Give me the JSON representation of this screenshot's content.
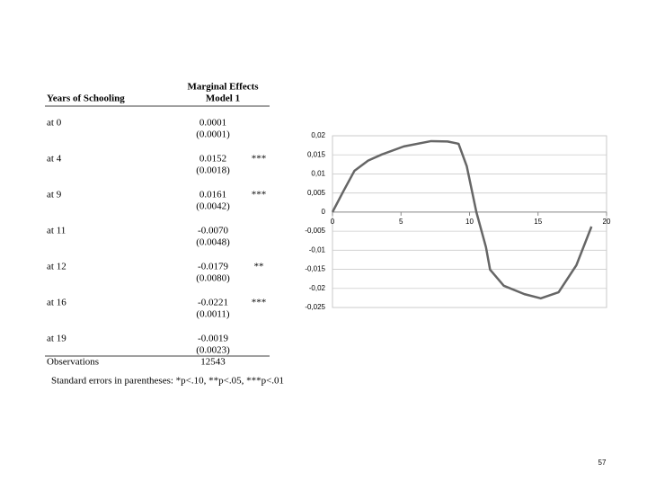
{
  "header": {
    "col1": "Years of Schooling",
    "col2_line1": "Marginal Effects",
    "col2_line2": "Model 1"
  },
  "table": {
    "rows": [
      {
        "label": "at 0",
        "coef": "0.0001",
        "se": "(0.0001)"
      },
      {
        "label": "at 4",
        "coef": "0.0152",
        "se": "(0.0018)",
        "stars": "***"
      },
      {
        "label": "at 9",
        "coef": "0.0161",
        "se": "(0.0042)",
        "stars": "***"
      },
      {
        "label": "at 11",
        "coef": "-0.0070",
        "se": "(0.0048)"
      },
      {
        "label": "at 12",
        "coef": "-0.0179",
        "se": "(0.0080)",
        "stars": "**"
      },
      {
        "label": "at 16",
        "coef": "-0.0221",
        "se": "(0.0011)",
        "stars": "***"
      },
      {
        "label": "at 19",
        "coef": "-0.0019",
        "se": "(0.0023)"
      }
    ],
    "observations": {
      "label": "Observations",
      "value": "12543"
    }
  },
  "footnote": "Standard errors in parentheses: *p<.10, **p<.05, ***p<.01",
  "page_number": "57",
  "chart_data": {
    "type": "line",
    "x": [
      0,
      0.8,
      1.6,
      2.6,
      3.6,
      5.2,
      7.2,
      8.4,
      9.2,
      9.8,
      10.5,
      11.2,
      11.5,
      12.5,
      14,
      15.2,
      16.5,
      17.8,
      18.9
    ],
    "series": [
      {
        "color": "#666666",
        "values": [
          0,
          0.0055,
          0.0108,
          0.0135,
          0.0151,
          0.0172,
          0.0186,
          0.0185,
          0.0179,
          0.012,
          0,
          -0.0092,
          -0.0151,
          -0.0193,
          -0.0215,
          -0.0226,
          -0.021,
          -0.0139,
          -0.0038
        ]
      }
    ],
    "xlim": [
      0,
      20
    ],
    "xticks": [
      0,
      5,
      10,
      15,
      20
    ],
    "ylim": [
      -0.025,
      0.02
    ],
    "yticks": [
      {
        "value": 0.02,
        "label": "0,02"
      },
      {
        "value": 0.015,
        "label": "0,015"
      },
      {
        "value": 0.01,
        "label": "0,01"
      },
      {
        "value": 0.005,
        "label": "0,005"
      },
      0,
      {
        "value": -0.005,
        "label": "-0,005"
      },
      {
        "value": -0.01,
        "label": "-0,01"
      },
      {
        "value": -0.015,
        "label": "-0,015"
      },
      {
        "value": -0.02,
        "label": "-0,02"
      },
      {
        "value": -0.025,
        "label": "-0,025"
      }
    ],
    "grid": true
  }
}
